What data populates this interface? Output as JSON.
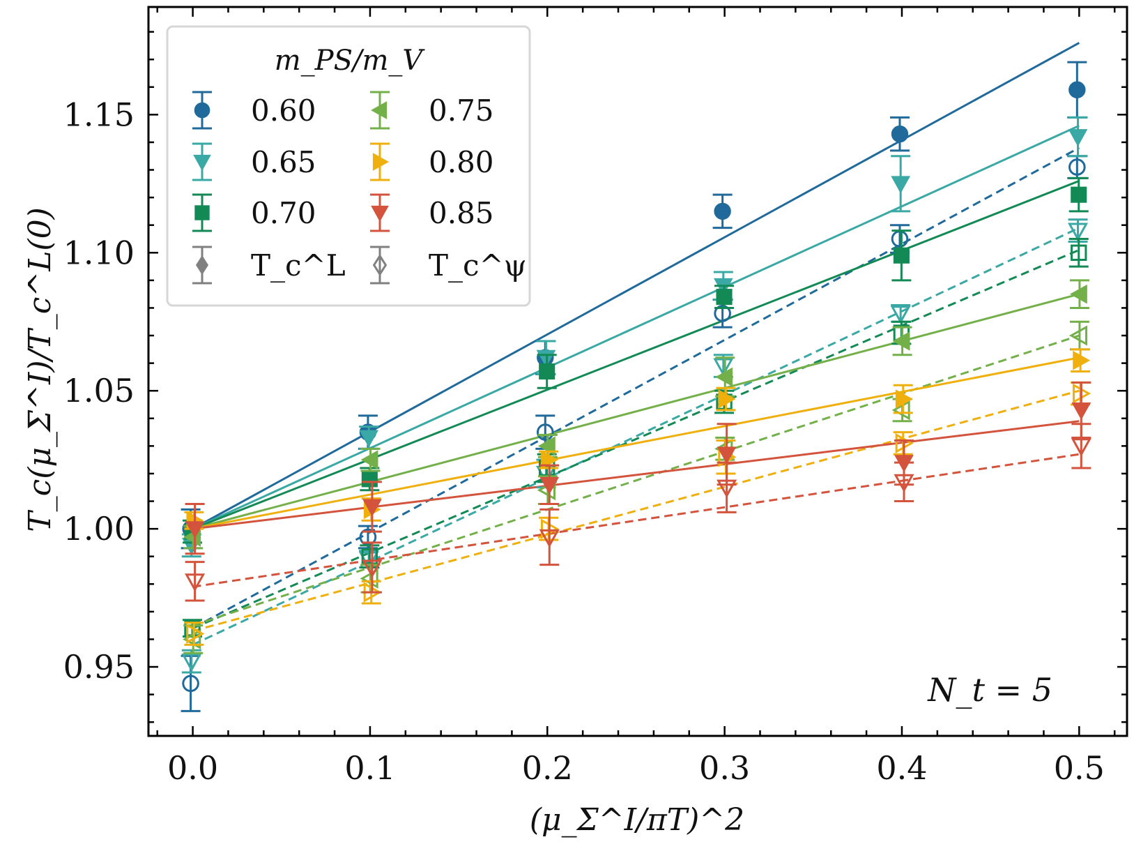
{
  "chart_data": {
    "type": "scatter",
    "title": "",
    "xlabel": "(μ_Σ^I/πT)^2",
    "ylabel": "T_c(μ_Σ^I)/T_c^L(0)",
    "xlim": [
      -0.025,
      0.527
    ],
    "ylim": [
      0.925,
      1.189
    ],
    "xticks": [
      0.0,
      0.1,
      0.2,
      0.3,
      0.4,
      0.5
    ],
    "xtick_labels": [
      "0.0",
      "0.1",
      "0.2",
      "0.3",
      "0.4",
      "0.5"
    ],
    "yticks": [
      0.95,
      1.0,
      1.05,
      1.1,
      1.15
    ],
    "ytick_labels": [
      "0.95",
      "1.00",
      "1.05",
      "1.10",
      "1.15"
    ],
    "x_minor_step": 0.02,
    "y_minor_step": 0.01,
    "grid": false,
    "annotation": "N_t = 5",
    "legend": {
      "placement": "top-left",
      "title": "m_PS/m_V",
      "entries": [
        {
          "label": "0.60",
          "series": "0.60",
          "marker": "circle"
        },
        {
          "label": "0.65",
          "series": "0.65",
          "marker": "triangle-down"
        },
        {
          "label": "0.70",
          "series": "0.70",
          "marker": "square"
        },
        {
          "label": "0.75",
          "series": "0.75",
          "marker": "triangle-left"
        },
        {
          "label": "0.80",
          "series": "0.80",
          "marker": "triangle-right"
        },
        {
          "label": "0.85",
          "series": "0.85",
          "marker": "triangle-down"
        },
        {
          "label": "T_c^L",
          "series": "",
          "marker": "diamond-filled",
          "color": "#808080"
        },
        {
          "label": "T_c^ψ",
          "series": "",
          "marker": "diamond-open",
          "color": "#808080"
        }
      ]
    },
    "x": [
      0.0,
      0.1,
      0.2,
      0.3,
      0.4,
      0.5
    ],
    "series": [
      {
        "name": "0.60",
        "color": "#1f6a9a",
        "marker": "circle",
        "TcL": {
          "values": [
            1.0,
            1.035,
            1.062,
            1.115,
            1.143,
            1.159
          ],
          "errors": [
            0.007,
            0.006,
            0.006,
            0.006,
            0.006,
            0.01
          ]
        },
        "Tcpsi": {
          "values": [
            0.944,
            0.997,
            1.035,
            1.078,
            1.105,
            1.131
          ],
          "errors": [
            0.01,
            0.004,
            0.006,
            0.005,
            0.005,
            0.004
          ]
        },
        "fit_solid": [
          [
            0.0,
            1.0
          ],
          [
            0.5,
            1.176
          ]
        ],
        "fit_dashed": [
          [
            0.0,
            0.964
          ],
          [
            0.5,
            1.138
          ]
        ]
      },
      {
        "name": "0.65",
        "color": "#3aa8a4",
        "marker": "triangle-down",
        "TcL": {
          "values": [
            0.994,
            1.033,
            1.062,
            1.088,
            1.125,
            1.142
          ],
          "errors": [
            0.004,
            0.004,
            0.006,
            0.005,
            0.01,
            0.007
          ]
        },
        "Tcpsi": {
          "values": [
            0.952,
            0.989,
            1.02,
            1.059,
            1.078,
            1.108
          ],
          "errors": [
            0.004,
            0.003,
            0.005,
            0.004,
            0.003,
            0.004
          ]
        },
        "fit_solid": [
          [
            0.0,
            1.0
          ],
          [
            0.5,
            1.146
          ]
        ],
        "fit_dashed": [
          [
            0.0,
            0.958
          ],
          [
            0.5,
            1.109
          ]
        ]
      },
      {
        "name": "0.70",
        "color": "#138a55",
        "marker": "square",
        "TcL": {
          "values": [
            0.999,
            1.018,
            1.057,
            1.084,
            1.099,
            1.121
          ],
          "errors": [
            0.004,
            0.004,
            0.006,
            0.004,
            0.009,
            0.006
          ]
        },
        "Tcpsi": {
          "values": [
            0.964,
            0.99,
            1.022,
            1.046,
            1.071,
            1.1
          ],
          "errors": [
            0.003,
            0.004,
            0.005,
            0.004,
            0.004,
            0.005
          ]
        },
        "fit_solid": [
          [
            0.0,
            1.0
          ],
          [
            0.5,
            1.126
          ]
        ],
        "fit_dashed": [
          [
            0.0,
            0.964
          ],
          [
            0.5,
            1.101
          ]
        ]
      },
      {
        "name": "0.75",
        "color": "#74b04a",
        "marker": "triangle-left",
        "TcL": {
          "values": [
            0.997,
            1.025,
            1.03,
            1.055,
            1.068,
            1.085
          ],
          "errors": [
            0.004,
            0.004,
            0.004,
            0.007,
            0.005,
            0.005
          ]
        },
        "Tcpsi": {
          "values": [
            0.96,
            0.982,
            1.014,
            1.029,
            1.043,
            1.07
          ],
          "errors": [
            0.005,
            0.005,
            0.005,
            0.004,
            0.004,
            0.005
          ]
        },
        "fit_solid": [
          [
            0.0,
            1.0
          ],
          [
            0.5,
            1.085
          ]
        ],
        "fit_dashed": [
          [
            0.0,
            0.965
          ],
          [
            0.5,
            1.07
          ]
        ]
      },
      {
        "name": "0.80",
        "color": "#efaf0d",
        "marker": "triangle-right",
        "TcL": {
          "values": [
            1.003,
            1.007,
            1.025,
            1.047,
            1.047,
            1.061
          ],
          "errors": [
            0.003,
            0.004,
            0.003,
            0.004,
            0.005,
            0.004
          ]
        },
        "Tcpsi": {
          "values": [
            0.962,
            0.977,
            1.0,
            1.026,
            1.031,
            1.049
          ],
          "errors": [
            0.004,
            0.004,
            0.004,
            0.006,
            0.004,
            0.004
          ]
        },
        "fit_solid": [
          [
            0.0,
            1.0
          ],
          [
            0.5,
            1.062
          ]
        ],
        "fit_dashed": [
          [
            0.0,
            0.963
          ],
          [
            0.5,
            1.05
          ]
        ]
      },
      {
        "name": "0.85",
        "color": "#d4533c",
        "marker": "triangle-down",
        "TcL": {
          "values": [
            1.0,
            1.008,
            1.016,
            1.027,
            1.024,
            1.043
          ],
          "errors": [
            0.009,
            0.009,
            0.007,
            0.011,
            0.008,
            0.01
          ]
        },
        "Tcpsi": {
          "values": [
            0.981,
            0.986,
            0.997,
            1.015,
            1.017,
            1.03
          ],
          "errors": [
            0.007,
            0.009,
            0.01,
            0.009,
            0.007,
            0.008
          ]
        },
        "fit_solid": [
          [
            0.0,
            1.0
          ],
          [
            0.5,
            1.039
          ]
        ],
        "fit_dashed": [
          [
            0.0,
            0.979
          ],
          [
            0.5,
            1.027
          ]
        ]
      }
    ]
  }
}
